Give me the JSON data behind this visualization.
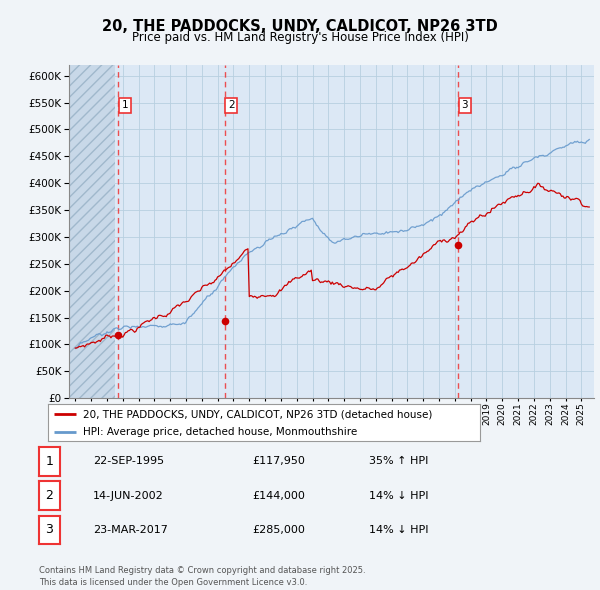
{
  "title": "20, THE PADDOCKS, UNDY, CALDICOT, NP26 3TD",
  "subtitle": "Price paid vs. HM Land Registry's House Price Index (HPI)",
  "background_color": "#f0f4f8",
  "chart_bg_color": "#dce8f5",
  "grid_color": "#b8cfe0",
  "ylim": [
    0,
    620000
  ],
  "yticks": [
    0,
    50000,
    100000,
    150000,
    200000,
    250000,
    300000,
    350000,
    400000,
    450000,
    500000,
    550000,
    600000
  ],
  "xlim_start": 1992.6,
  "xlim_end": 2025.8,
  "transactions": [
    {
      "label": "1",
      "date": "22-SEP-1995",
      "price": 117950,
      "year": 1995.73,
      "pct": "35% ↑ HPI"
    },
    {
      "label": "2",
      "date": "14-JUN-2002",
      "price": 144000,
      "year": 2002.45,
      "pct": "14% ↓ HPI"
    },
    {
      "label": "3",
      "date": "23-MAR-2017",
      "price": 285000,
      "year": 2017.22,
      "pct": "14% ↓ HPI"
    }
  ],
  "legend_label_red": "20, THE PADDOCKS, UNDY, CALDICOT, NP26 3TD (detached house)",
  "legend_label_blue": "HPI: Average price, detached house, Monmouthshire",
  "footer": "Contains HM Land Registry data © Crown copyright and database right 2025.\nThis data is licensed under the Open Government Licence v3.0.",
  "red_color": "#cc0000",
  "blue_color": "#6699cc",
  "vline_color": "#ee3333",
  "hatch_end_year": 1995.5
}
